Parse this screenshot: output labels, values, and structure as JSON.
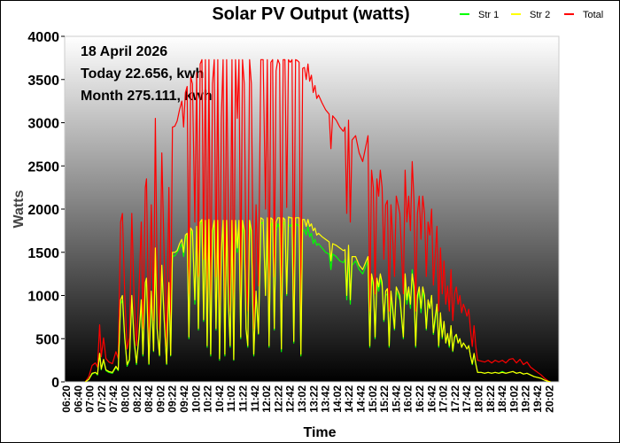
{
  "chart_data": {
    "type": "line",
    "title": "Solar PV Output (watts)",
    "xlabel": "Time",
    "ylabel": "Watts",
    "ylim": [
      0,
      4000
    ],
    "yticks": [
      "0",
      "500",
      "1000",
      "1500",
      "2000",
      "2500",
      "3000",
      "3500",
      "4000"
    ],
    "xticks": [
      "06:20",
      "06:40",
      "07:00",
      "07:22",
      "07:42",
      "08:02",
      "08:22",
      "08:42",
      "09:02",
      "09:22",
      "09:42",
      "10:02",
      "10:22",
      "10:42",
      "11:02",
      "11:22",
      "11:42",
      "12:02",
      "12:22",
      "12:42",
      "13:02",
      "13:22",
      "13:42",
      "14:02",
      "14:22",
      "14:42",
      "15:02",
      "15:22",
      "15:42",
      "16:02",
      "16:22",
      "16:42",
      "17:02",
      "17:22",
      "17:42",
      "18:02",
      "18:22",
      "18:42",
      "19:02",
      "19:22",
      "19:42",
      "20:02"
    ],
    "grid": false,
    "legend_position": "top-right",
    "annotations": [
      "18 April 2026",
      "Today 22.656, kwh",
      "Month 275.111, kwh"
    ],
    "background": "vertical gradient white to black",
    "colors": {
      "Str 1": "#00ff00",
      "Str 2": "#ffff00",
      "Total": "#ff0000"
    },
    "x": [
      "06:52",
      "06:58",
      "07:04",
      "07:10",
      "07:14",
      "07:18",
      "07:21",
      "07:25",
      "07:29",
      "07:34",
      "07:40",
      "07:46",
      "07:50",
      "07:54",
      "07:57",
      "08:01",
      "08:05",
      "08:09",
      "08:13",
      "08:17",
      "08:21",
      "08:25",
      "08:29",
      "08:32",
      "08:36",
      "08:38",
      "08:42",
      "08:46",
      "08:50",
      "08:53",
      "08:56",
      "09:00",
      "09:04",
      "09:08",
      "09:12",
      "09:16",
      "09:19",
      "09:22",
      "09:26",
      "09:30",
      "09:34",
      "09:38",
      "09:41",
      "09:44",
      "09:47",
      "09:50",
      "09:53",
      "09:56",
      "10:00",
      "10:03",
      "10:06",
      "10:09",
      "10:12",
      "10:15",
      "10:18",
      "10:21",
      "10:24",
      "10:27",
      "10:30",
      "10:33",
      "10:36",
      "10:39",
      "10:42",
      "10:45",
      "10:48",
      "10:51",
      "10:54",
      "10:57",
      "11:00",
      "11:03",
      "11:06",
      "11:09",
      "11:12",
      "11:15",
      "11:18",
      "11:21",
      "11:24",
      "11:27",
      "11:30",
      "11:33",
      "11:36",
      "11:40",
      "11:44",
      "11:48",
      "11:52",
      "11:56",
      "12:00",
      "12:03",
      "12:06",
      "12:09",
      "12:12",
      "12:15",
      "12:18",
      "12:21",
      "12:24",
      "12:27",
      "12:30",
      "12:33",
      "12:36",
      "12:39",
      "12:42",
      "12:45",
      "12:48",
      "12:51",
      "12:54",
      "12:57",
      "13:00",
      "13:03",
      "13:06",
      "13:09",
      "13:12",
      "13:15",
      "13:18",
      "13:21",
      "13:24",
      "13:27",
      "13:30",
      "13:36",
      "13:42",
      "13:48",
      "13:51",
      "13:54",
      "14:00",
      "14:06",
      "14:12",
      "14:15",
      "14:18",
      "14:21",
      "14:24",
      "14:27",
      "14:33",
      "14:39",
      "14:45",
      "14:51",
      "14:54",
      "14:57",
      "15:00",
      "15:03",
      "15:06",
      "15:09",
      "15:12",
      "15:15",
      "15:18",
      "15:21",
      "15:24",
      "15:27",
      "15:30",
      "15:33",
      "15:36",
      "15:39",
      "15:42",
      "15:48",
      "15:54",
      "15:57",
      "16:00",
      "16:03",
      "16:06",
      "16:09",
      "16:12",
      "16:15",
      "16:18",
      "16:21",
      "16:24",
      "16:27",
      "16:30",
      "16:33",
      "16:36",
      "16:39",
      "16:42",
      "16:45",
      "16:48",
      "16:51",
      "16:54",
      "16:57",
      "17:00",
      "17:03",
      "17:06",
      "17:09",
      "17:12",
      "17:15",
      "17:18",
      "17:21",
      "17:24",
      "17:27",
      "17:30",
      "17:33",
      "17:36",
      "17:39",
      "17:42",
      "17:45",
      "17:48",
      "17:51",
      "17:54",
      "17:57",
      "18:00",
      "18:06",
      "18:12",
      "18:18",
      "18:24",
      "18:30",
      "18:36",
      "18:42",
      "18:48",
      "18:54",
      "19:00",
      "19:06",
      "19:12",
      "19:18",
      "19:24",
      "19:30",
      "19:36",
      "19:42",
      "19:48",
      "19:54",
      "20:00",
      "20:04"
    ],
    "series": [
      {
        "name": "Total",
        "values": [
          0,
          60,
          190,
          220,
          170,
          660,
          290,
          510,
          270,
          230,
          210,
          350,
          270,
          1850,
          1950,
          1020,
          380,
          510,
          1950,
          930,
          420,
          1020,
          1850,
          620,
          2250,
          2350,
          410,
          2050,
          710,
          3050,
          1220,
          610,
          2650,
          1420,
          410,
          2250,
          610,
          2950,
          2960,
          3020,
          3150,
          3250,
          2950,
          3350,
          3420,
          1020,
          3530,
          3450,
          1850,
          3580,
          1220,
          3680,
          3730,
          1420,
          3730,
          820,
          3730,
          620,
          3450,
          3730,
          1220,
          3730,
          520,
          3050,
          3730,
          620,
          3730,
          1850,
          820,
          3730,
          510,
          3730,
          3050,
          3730,
          1020,
          3730,
          3450,
          1220,
          820,
          3730,
          3450,
          620,
          2050,
          1110,
          3730,
          3730,
          2000,
          3730,
          820,
          3700,
          3730,
          1220,
          3600,
          3730,
          3680,
          730,
          3730,
          3730,
          2020,
          3730,
          3700,
          3730,
          920,
          3730,
          3720,
          3700,
          620,
          3630,
          3640,
          3500,
          3680,
          3480,
          3550,
          3350,
          3430,
          3280,
          3320,
          3230,
          3150,
          3100,
          2700,
          3080,
          3030,
          2950,
          2900,
          2950,
          1950,
          3030,
          1850,
          2800,
          2850,
          2650,
          2550,
          2750,
          2850,
          820,
          2450,
          2250,
          1020,
          2350,
          2150,
          2450,
          2250,
          1420,
          2050,
          2100,
          820,
          2050,
          1650,
          1220,
          2150,
          1950,
          1020,
          2450,
          1850,
          2150,
          1750,
          2550,
          2100,
          820,
          1950,
          2150,
          1650,
          2150,
          1950,
          1220,
          1850,
          1700,
          2000,
          1120,
          1450,
          1800,
          820,
          1550,
          1020,
          1400,
          900,
          1110,
          820,
          1300,
          710,
          1020,
          1100,
          900,
          1000,
          800,
          900,
          840,
          760,
          840,
          600,
          410,
          650,
          410,
          250,
          240,
          230,
          250,
          220,
          250,
          230,
          250,
          220,
          260,
          270,
          220,
          260,
          200,
          230,
          170,
          140,
          110,
          80,
          40,
          10,
          0
        ]
      },
      {
        "name": "Str 1",
        "values": [
          0,
          30,
          90,
          110,
          80,
          330,
          140,
          250,
          130,
          110,
          100,
          170,
          130,
          900,
          950,
          500,
          180,
          250,
          950,
          450,
          200,
          500,
          900,
          300,
          1100,
          1150,
          200,
          1000,
          350,
          1500,
          600,
          300,
          1300,
          700,
          200,
          1100,
          300,
          1450,
          1460,
          1500,
          1550,
          1600,
          1450,
          1650,
          1700,
          500,
          1750,
          1700,
          900,
          1780,
          600,
          1830,
          1850,
          700,
          1860,
          400,
          1850,
          300,
          1700,
          1860,
          600,
          1860,
          250,
          1550,
          1860,
          300,
          1860,
          900,
          400,
          1860,
          250,
          1860,
          1500,
          1860,
          500,
          1860,
          1700,
          600,
          400,
          1860,
          1700,
          300,
          1000,
          550,
          1830,
          1850,
          1000,
          1830,
          400,
          1800,
          1850,
          600,
          1750,
          1830,
          1780,
          350,
          1830,
          1850,
          1000,
          1820,
          1800,
          1830,
          450,
          1830,
          1820,
          1800,
          300,
          1750,
          1760,
          1700,
          1800,
          1680,
          1720,
          1600,
          1650,
          1580,
          1600,
          1550,
          1500,
          1480,
          1300,
          1480,
          1450,
          1400,
          1380,
          1420,
          950,
          1450,
          900,
          1350,
          1400,
          1300,
          1250,
          1350,
          1400,
          400,
          1200,
          1100,
          500,
          1150,
          1050,
          1200,
          1100,
          700,
          1000,
          1020,
          400,
          1000,
          800,
          600,
          1050,
          950,
          500,
          1200,
          900,
          1050,
          850,
          1300,
          1000,
          400,
          950,
          1050,
          800,
          1050,
          950,
          600,
          900,
          850,
          1000,
          550,
          700,
          900,
          400,
          750,
          500,
          700,
          450,
          550,
          400,
          650,
          350,
          500,
          550,
          450,
          500,
          400,
          450,
          420,
          380,
          420,
          300,
          200,
          320,
          200,
          110,
          110,
          100,
          110,
          100,
          110,
          100,
          120,
          100,
          110,
          120,
          100,
          110,
          90,
          100,
          80,
          60,
          50,
          40,
          20,
          5,
          0
        ]
      },
      {
        "name": "Str 2",
        "values": [
          0,
          30,
          100,
          110,
          90,
          330,
          150,
          260,
          140,
          120,
          110,
          180,
          140,
          950,
          1000,
          520,
          200,
          260,
          1000,
          480,
          220,
          520,
          950,
          320,
          1150,
          1200,
          210,
          1050,
          360,
          1550,
          620,
          310,
          1350,
          720,
          210,
          1150,
          310,
          1500,
          1500,
          1520,
          1600,
          1650,
          1500,
          1700,
          1720,
          520,
          1780,
          1750,
          950,
          1800,
          620,
          1850,
          1880,
          720,
          1870,
          420,
          1880,
          320,
          1750,
          1870,
          620,
          1870,
          270,
          1500,
          1870,
          320,
          1870,
          950,
          420,
          1870,
          260,
          1870,
          1550,
          1870,
          520,
          1870,
          1750,
          620,
          420,
          1870,
          1750,
          320,
          1050,
          560,
          1900,
          1880,
          1000,
          1900,
          420,
          1900,
          1880,
          620,
          1850,
          1900,
          1900,
          380,
          1900,
          1880,
          1020,
          1910,
          1900,
          1900,
          470,
          1900,
          1900,
          1900,
          320,
          1880,
          1880,
          1800,
          1880,
          1800,
          1830,
          1750,
          1780,
          1700,
          1720,
          1680,
          1650,
          1620,
          1400,
          1600,
          1580,
          1550,
          1520,
          1530,
          1000,
          1580,
          950,
          1450,
          1450,
          1350,
          1300,
          1400,
          1450,
          420,
          1250,
          1150,
          520,
          1200,
          1100,
          1250,
          1150,
          720,
          1050,
          1080,
          420,
          1050,
          850,
          620,
          1100,
          1000,
          520,
          1250,
          950,
          1100,
          900,
          1250,
          1100,
          420,
          1000,
          1100,
          850,
          1100,
          1000,
          620,
          950,
          850,
          1000,
          570,
          750,
          900,
          420,
          800,
          520,
          700,
          450,
          560,
          420,
          650,
          360,
          520,
          550,
          450,
          500,
          400,
          450,
          420,
          380,
          420,
          300,
          210,
          330,
          210,
          110,
          110,
          100,
          110,
          100,
          110,
          100,
          110,
          100,
          110,
          120,
          100,
          110,
          90,
          100,
          80,
          60,
          50,
          40,
          20,
          5,
          0
        ]
      }
    ]
  },
  "legend": [
    {
      "label": "Str 1",
      "color": "#00ff00"
    },
    {
      "label": "Str 2",
      "color": "#ffff00"
    },
    {
      "label": "Total",
      "color": "#ff0000"
    }
  ]
}
